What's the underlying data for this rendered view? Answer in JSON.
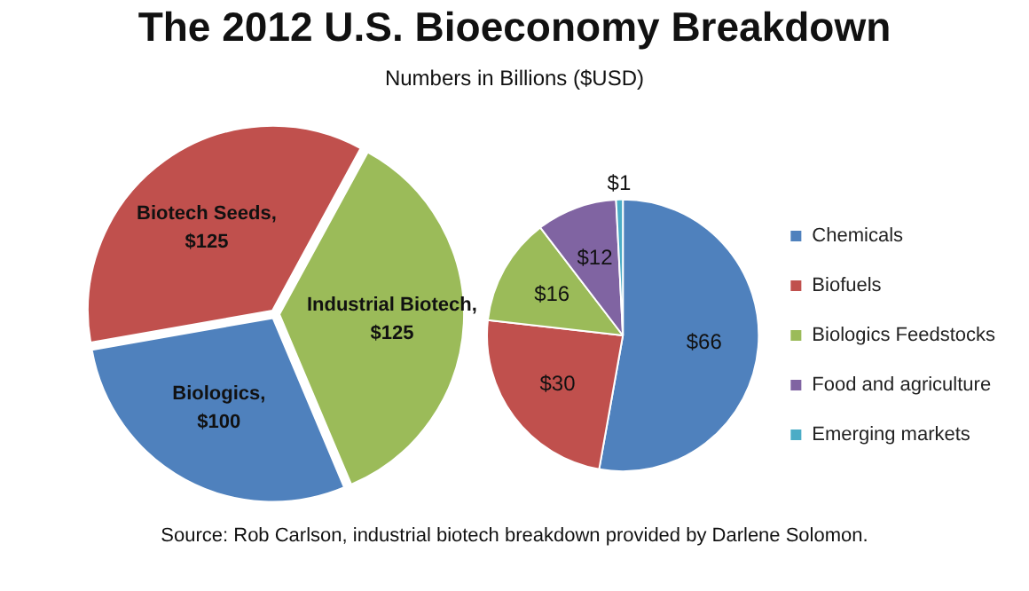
{
  "chart_data": [
    {
      "type": "pie",
      "title": "The 2012 U.S. Bioeconomy Breakdown",
      "subtitle": "Numbers in Billions ($USD)",
      "categories": [
        "Biotech Seeds",
        "Industrial Biotech",
        "Biologics"
      ],
      "values": [
        125,
        125,
        100
      ],
      "colors": [
        "#c0504d",
        "#9bbb59",
        "#4f81bd"
      ],
      "value_labels": [
        ", $125",
        ", $125",
        ", $100"
      ],
      "legend": false
    },
    {
      "type": "pie",
      "categories": [
        "Chemicals",
        "Biofuels",
        "Biologics Feedstocks",
        "Food and agriculture",
        "Emerging markets"
      ],
      "values": [
        66,
        30,
        16,
        12,
        1
      ],
      "colors": [
        "#4f81bd",
        "#c0504d",
        "#9bbb59",
        "#8064a2",
        "#4bacc6"
      ],
      "value_labels": [
        "$66",
        "$30",
        "$16",
        "$12",
        "$1"
      ],
      "legend": "right",
      "annotations": [
        "Source: Rob Carlson, industrial biotech breakdown provided by Darlene Solomon."
      ]
    }
  ]
}
